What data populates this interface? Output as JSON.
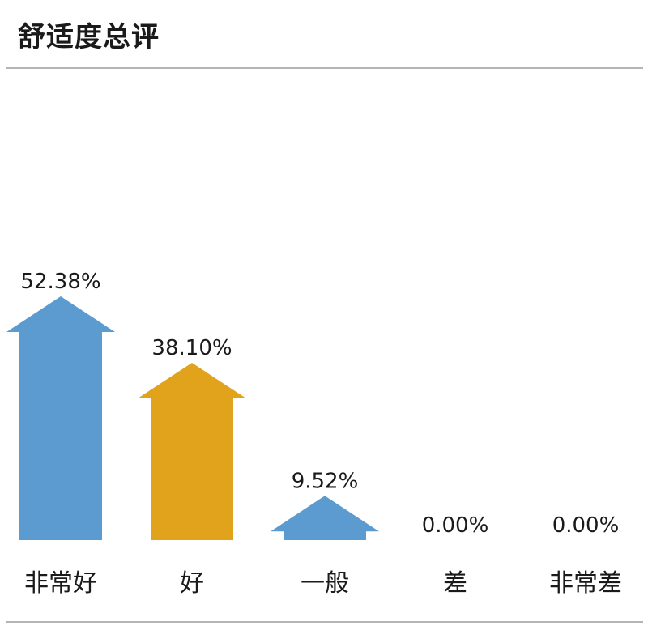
{
  "title": "舒适度总评",
  "colors": {
    "blue": "#5b9bd0",
    "gold": "#e0a31b",
    "rule": "#b5b5b5",
    "text": "#1a1a1a"
  },
  "chart_data": {
    "type": "bar",
    "title": "舒适度总评",
    "categories": [
      "非常好",
      "好",
      "一般",
      "差",
      "非常差"
    ],
    "values": [
      52.38,
      38.1,
      9.52,
      0.0,
      0.0
    ],
    "value_labels": [
      "52.38%",
      "38.10%",
      "9.52%",
      "0.00%",
      "0.00%"
    ],
    "bar_colors": [
      "#5b9bd0",
      "#e0a31b",
      "#5b9bd0",
      "#5b9bd0",
      "#5b9bd0"
    ],
    "mark_shape": "arrow",
    "ylim": [
      0,
      52.38
    ],
    "grid": false,
    "legend": "none"
  }
}
